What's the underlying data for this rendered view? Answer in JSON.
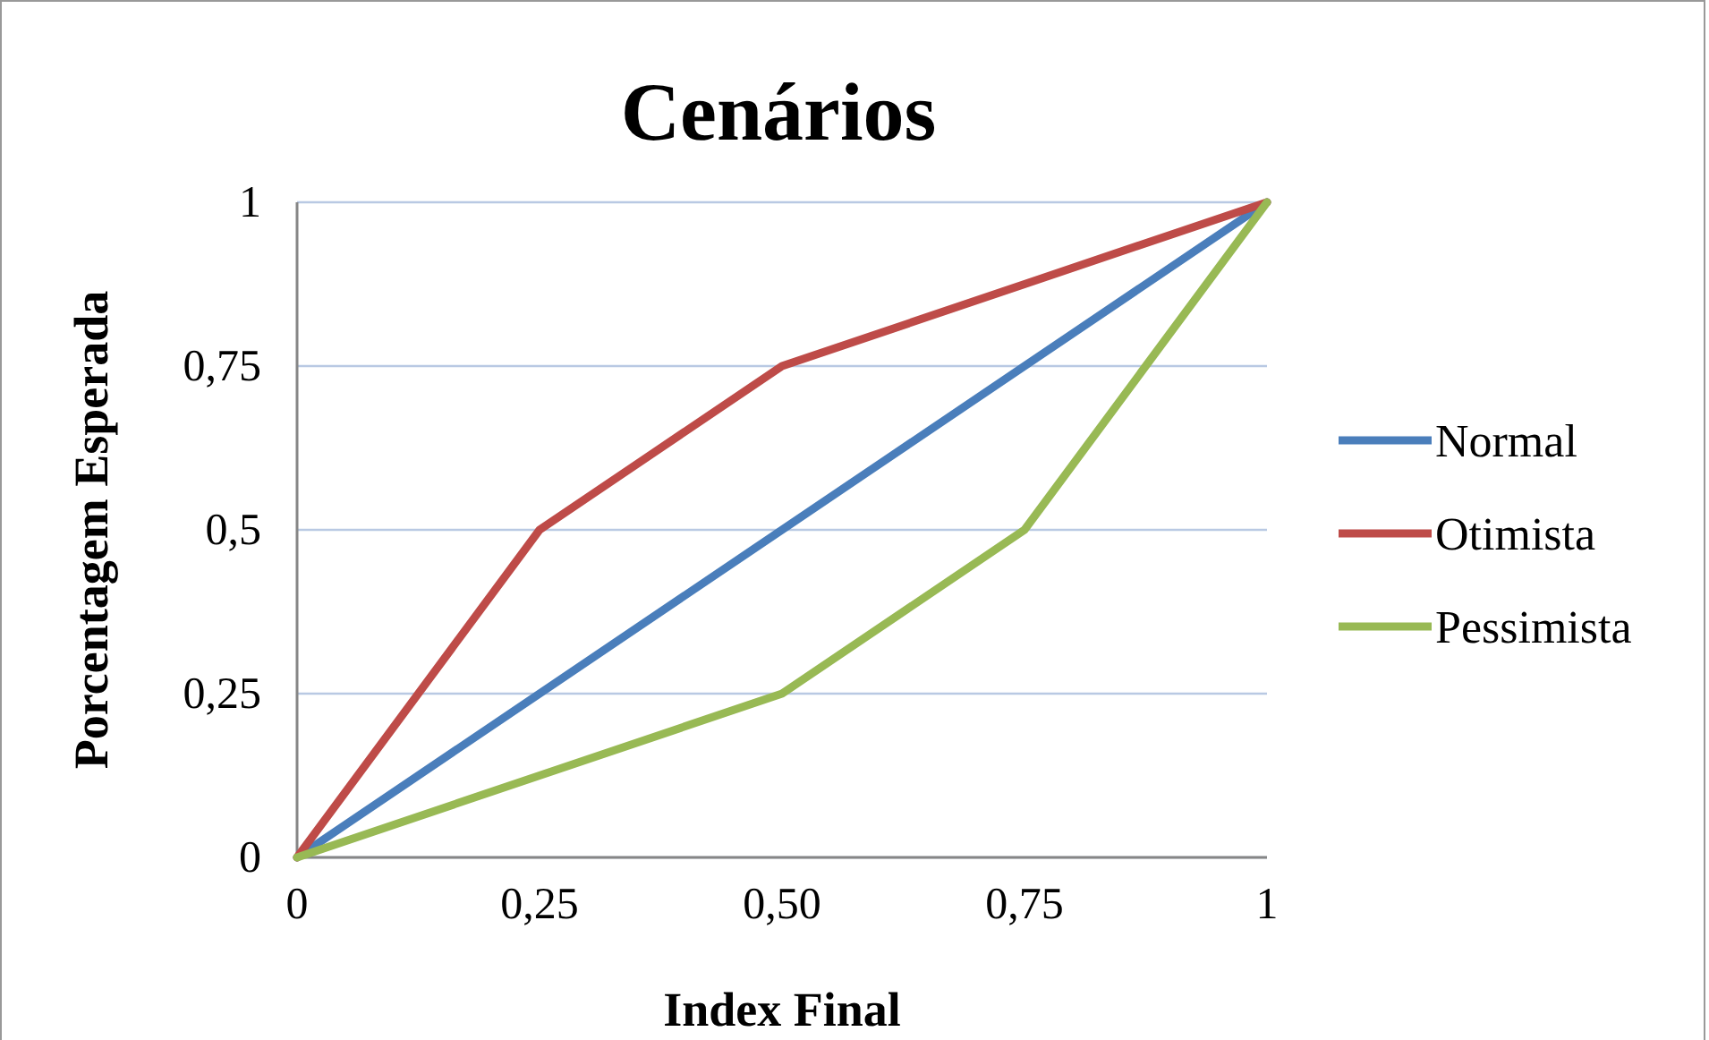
{
  "chart_data": {
    "type": "line",
    "title": "Cenários",
    "xlabel": "Index Final",
    "ylabel": "Porcentagem Esperada",
    "x": [
      0,
      0.25,
      0.5,
      0.75,
      1
    ],
    "series": [
      {
        "name": "Normal",
        "color": "#4a7ebb",
        "values": [
          0,
          0.25,
          0.5,
          0.75,
          1
        ]
      },
      {
        "name": "Otimista",
        "color": "#be4b48",
        "values": [
          0,
          0.5,
          0.75,
          0.875,
          1
        ]
      },
      {
        "name": "Pessimista",
        "color": "#98b954",
        "values": [
          0,
          0.125,
          0.25,
          0.5,
          1
        ]
      }
    ],
    "xlim": [
      0,
      1
    ],
    "xticks": [
      0,
      {
        "value": 0.25,
        "label": "0,25"
      },
      {
        "value": 0.5,
        "label": "0,50"
      },
      {
        "value": 0.75,
        "label": "0,75"
      },
      1
    ],
    "ylim": [
      0,
      1
    ],
    "yticks": [
      0,
      {
        "value": 0.25,
        "label": "0,25"
      },
      {
        "value": 0.5,
        "label": "0,5"
      },
      {
        "value": 0.75,
        "label": "0,75"
      },
      1
    ],
    "grid": "y",
    "legend": "right",
    "marker": "none",
    "line_style": "solid"
  }
}
